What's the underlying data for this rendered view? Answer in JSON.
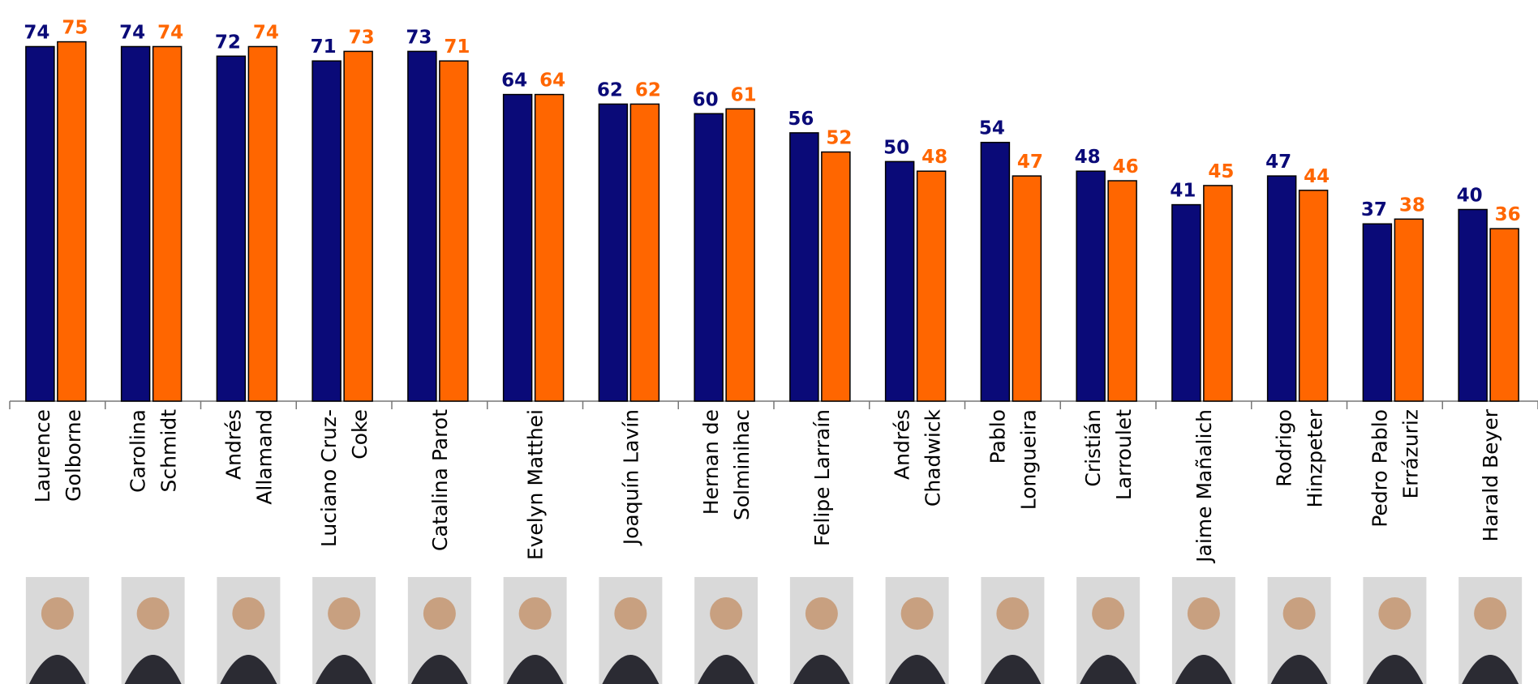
{
  "chart_data": {
    "type": "bar",
    "categories": [
      "Laurence\nGolborne",
      "Carolina\nSchmidt",
      "Andrés\nAllamand",
      "Luciano Cruz-\nCoke",
      "Catalina Parot",
      "Evelyn Matthei",
      "Joaquín Lavín",
      "Hernan de\nSolminihac",
      "Felipe Larraín",
      "Andrés\nChadwick",
      "Pablo\nLongueira",
      "Cristián\nLarroulet",
      "Jaime Mañalich",
      "Rodrigo\nHinzpeter",
      "Pedro Pablo\nErrázuriz",
      "Harald Beyer"
    ],
    "series": [
      {
        "color": "#0a0a78",
        "values": [
          74,
          74,
          72,
          71,
          73,
          64,
          62,
          60,
          56,
          50,
          54,
          48,
          41,
          47,
          37,
          40
        ]
      },
      {
        "color": "#ff6600",
        "values": [
          75,
          74,
          74,
          73,
          71,
          64,
          62,
          61,
          52,
          48,
          47,
          46,
          45,
          44,
          38,
          36
        ]
      }
    ],
    "ylim": [
      0,
      80
    ]
  }
}
